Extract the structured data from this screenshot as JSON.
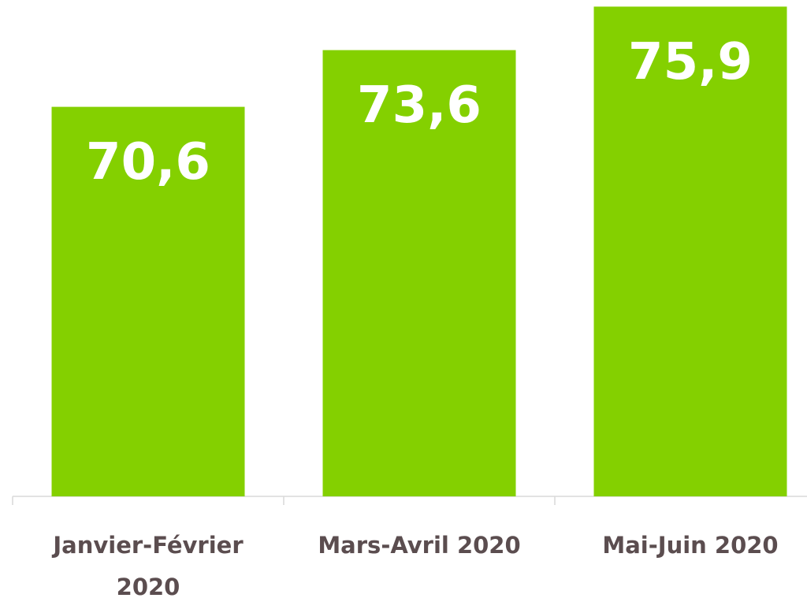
{
  "chart_data": {
    "type": "bar",
    "categories": [
      "Janvier-Février 2020",
      "Mars-Avril 2020",
      "Mai-Juin 2020"
    ],
    "values": [
      70.6,
      73.6,
      75.9
    ],
    "value_labels": [
      "70,6",
      "73,6",
      "75,9"
    ],
    "color": "#84d000",
    "ylim": [
      50,
      76
    ]
  }
}
